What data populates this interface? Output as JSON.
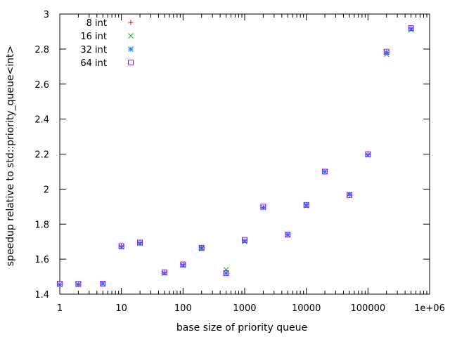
{
  "chart_data": {
    "type": "scatter",
    "xlabel": "base size of priority queue",
    "ylabel": "speedup relative to std::priority_queue<int>",
    "x_scale": "log",
    "xlim": [
      1,
      1000000
    ],
    "ylim": [
      1.4,
      3.0
    ],
    "x_ticks": [
      1,
      10,
      100,
      1000,
      10000,
      100000,
      1000000
    ],
    "x_tick_labels": [
      "1",
      "10",
      "100",
      "1000",
      "10000",
      "100000",
      "1e+06"
    ],
    "y_ticks": [
      1.4,
      1.6,
      1.8,
      2.0,
      2.2,
      2.4,
      2.6,
      2.8,
      3.0
    ],
    "y_tick_labels": [
      "1.4",
      "1.6",
      "1.8",
      "2",
      "2.2",
      "2.4",
      "2.6",
      "2.8",
      "3"
    ],
    "legend_position": "top-left",
    "grid": false,
    "x": [
      1,
      2,
      5,
      10,
      20,
      50,
      100,
      200,
      500,
      1000,
      2000,
      5000,
      10000,
      20000,
      50000,
      100000,
      200000,
      500000
    ],
    "series": [
      {
        "name": "8 int",
        "marker": "plus",
        "color": "#ff0000",
        "values": [
          1.455,
          1.455,
          1.46,
          1.675,
          1.695,
          1.525,
          1.57,
          1.665,
          1.52,
          1.705,
          1.895,
          1.74,
          1.91,
          2.1,
          1.965,
          2.2,
          2.78,
          2.92
        ]
      },
      {
        "name": "16 int",
        "marker": "cross",
        "color": "#00c000",
        "values": [
          1.455,
          1.455,
          1.46,
          1.67,
          1.69,
          1.52,
          1.565,
          1.66,
          1.54,
          1.7,
          1.895,
          1.74,
          1.905,
          2.1,
          1.97,
          2.195,
          2.77,
          2.91
        ]
      },
      {
        "name": "32 int",
        "marker": "star",
        "color": "#0080ff",
        "values": [
          1.455,
          1.455,
          1.46,
          1.67,
          1.69,
          1.52,
          1.565,
          1.665,
          1.52,
          1.705,
          1.895,
          1.74,
          1.91,
          2.1,
          1.97,
          2.195,
          2.78,
          2.915
        ]
      },
      {
        "name": "64 int",
        "marker": "square",
        "color": "#c000ff",
        "values": [
          1.46,
          1.46,
          1.46,
          1.675,
          1.695,
          1.525,
          1.57,
          1.665,
          1.52,
          1.71,
          1.9,
          1.74,
          1.91,
          2.1,
          1.965,
          2.2,
          2.785,
          2.92
        ]
      }
    ]
  }
}
